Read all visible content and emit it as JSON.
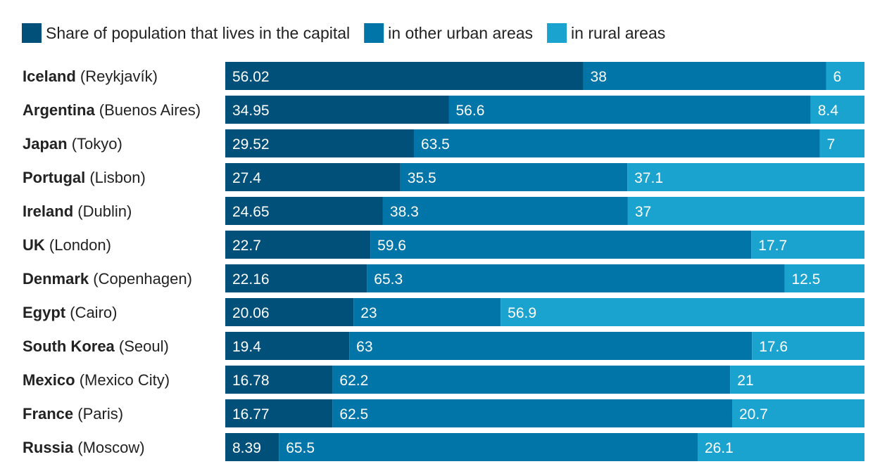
{
  "colors": {
    "capital": "#01507a",
    "urban": "#0175a7",
    "rural": "#1ba3d0"
  },
  "chart_data": {
    "type": "bar",
    "orientation": "horizontal",
    "stacked": true,
    "normalized": true,
    "legend_position": "top-left",
    "grid": false,
    "xlim": [
      0,
      100
    ],
    "categories": [
      {
        "country": "Iceland",
        "capital": "Reykjavík"
      },
      {
        "country": "Argentina",
        "capital": "Buenos Aires"
      },
      {
        "country": "Japan",
        "capital": "Tokyo"
      },
      {
        "country": "Portugal",
        "capital": "Lisbon"
      },
      {
        "country": "Ireland",
        "capital": "Dublin"
      },
      {
        "country": "UK",
        "capital": "London"
      },
      {
        "country": "Denmark",
        "capital": "Copenhagen"
      },
      {
        "country": "Egypt",
        "capital": "Cairo"
      },
      {
        "country": "South Korea",
        "capital": "Seoul"
      },
      {
        "country": "Mexico",
        "capital": "Mexico City"
      },
      {
        "country": "France",
        "capital": "Paris"
      },
      {
        "country": "Russia",
        "capital": "Moscow"
      }
    ],
    "series": [
      {
        "name": "Share of population that lives in the capital",
        "color": "#01507a",
        "values": [
          56.02,
          34.95,
          29.52,
          27.4,
          24.65,
          22.7,
          22.16,
          20.06,
          19.4,
          16.78,
          16.77,
          8.39
        ]
      },
      {
        "name": "in other urban areas",
        "color": "#0175a7",
        "values": [
          38,
          56.6,
          63.5,
          35.5,
          38.3,
          59.6,
          65.3,
          23,
          63,
          62.2,
          62.5,
          65.5
        ]
      },
      {
        "name": "in rural areas",
        "color": "#1ba3d0",
        "values": [
          6,
          8.4,
          7,
          37.1,
          37,
          17.7,
          12.5,
          56.9,
          17.6,
          21,
          20.7,
          26.1
        ]
      }
    ]
  }
}
